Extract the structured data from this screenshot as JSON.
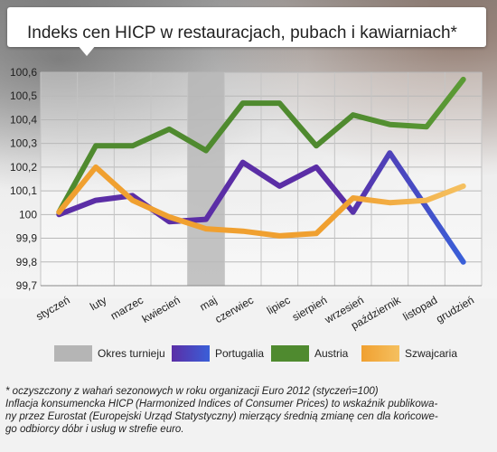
{
  "title": "Indeks cen HICP w restauracjach, pubach i kawiarniach*",
  "legend": [
    {
      "label": "Okres turnieju",
      "color": "#b5b5b5"
    },
    {
      "label": "Portugalia",
      "color": "#5b2ea6"
    },
    {
      "label": "Austria",
      "color": "#4f8a2f"
    },
    {
      "label": "Szwajcaria",
      "color": "#f0a030"
    }
  ],
  "footnote": [
    "* oczyszczony z wahań sezonowych w roku organizacji Euro 2012 (styczeń=100)",
    "Inflacja konsumencka HICP (Harmonized Indices of Consumer Prices) to wskaźnik publikowa-",
    "ny przez Eurostat (Europejski Urząd Statystyczny) mierzący średnią zmianę cen dla końcowe-",
    "go odbiorcy dóbr i usług w strefie euro."
  ],
  "chart_data": {
    "type": "line",
    "title": "Indeks cen HICP w restauracjach, pubach i kawiarniach*",
    "categories": [
      "styczeń",
      "luty",
      "marzec",
      "kwiecień",
      "maj",
      "czerwiec",
      "lipiec",
      "sierpień",
      "wrzesień",
      "październik",
      "listopad",
      "grudzień"
    ],
    "ylim": [
      99.7,
      100.6
    ],
    "yticks": [
      "99,7",
      "99,8",
      "99,9",
      "100",
      "100,1",
      "100,2",
      "100,3",
      "100,4",
      "100,5",
      "100,6"
    ],
    "grid": true,
    "highlight_category": "maj",
    "highlight_label": "Okres turnieju",
    "series": [
      {
        "name": "Portugalia",
        "color": "#5b2ea6",
        "color_end": "#3a5fd8",
        "values": [
          100.0,
          100.06,
          100.08,
          99.97,
          99.98,
          100.22,
          100.12,
          100.2,
          100.01,
          100.26,
          100.03,
          99.8
        ]
      },
      {
        "name": "Austria",
        "color": "#4f8a2f",
        "color_end": "#5b9a35",
        "values": [
          100.01,
          100.29,
          100.29,
          100.36,
          100.27,
          100.47,
          100.47,
          100.29,
          100.42,
          100.38,
          100.37,
          100.57
        ]
      },
      {
        "name": "Szwajcaria",
        "color": "#f0a030",
        "color_end": "#f5c060",
        "values": [
          100.01,
          100.2,
          100.06,
          99.99,
          99.94,
          99.93,
          99.91,
          99.92,
          100.07,
          100.05,
          100.06,
          100.12
        ]
      }
    ]
  }
}
